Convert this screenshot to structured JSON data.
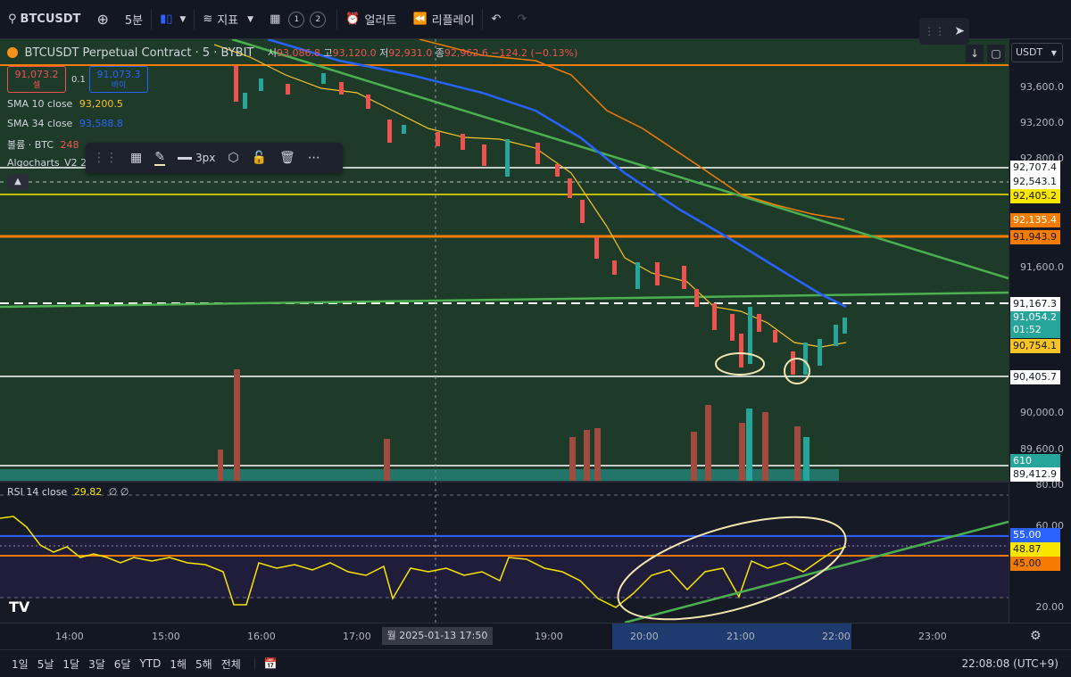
{
  "toolbar": {
    "symbol": "BTCUSDT",
    "interval": "5분",
    "indicators": "지표",
    "layout_1": "1",
    "layout_2": "2",
    "alert": "얼러트",
    "replay": "리플레이"
  },
  "legend": {
    "title": "BTCUSDT Perpetual Contract · 5 · BYBIT",
    "open_label": "시",
    "open": "93,086.8",
    "high_label": "고",
    "high": "93,120.0",
    "low_label": "저",
    "low": "92,931.0",
    "close_label": "종",
    "close": "92,962.6",
    "change": "−124.2 (−0.13%)",
    "sell_price": "91,073.2",
    "sell_label": "셀",
    "spread": "0.1",
    "buy_price": "91,073.3",
    "buy_label": "바이",
    "sma10_label": "SMA 10 close",
    "sma10_value": "93,200.5",
    "sma34_label": "SMA 34 close",
    "sma34_value": "93,588.8",
    "volume_label": "볼륨 · BTC",
    "volume_value": "248",
    "algo_label": "Algocharts_V2 2"
  },
  "drawing_toolbar": {
    "width_label": "3px"
  },
  "currency": "USDT",
  "price_axis": {
    "ticks": [
      "93,600.0",
      "93,200.0",
      "92,800.0",
      "91,600.0",
      "90,000.0",
      "89,600.0"
    ],
    "labels": {
      "l1": "92,707.4",
      "l2": "92,543.1",
      "l3": "92,405.2",
      "l4": "92,135.4",
      "l5": "91,943.9",
      "l6": "91,167.3",
      "l7": "91,054.2",
      "l7b": "01:52",
      "l8": "90,754.1",
      "l9": "90,405.7",
      "l10": "610",
      "l11": "89,412.9"
    }
  },
  "rsi": {
    "label": "RSI 14 close",
    "value": "29.82",
    "extra": "∅ ∅",
    "ticks": [
      "80.00",
      "60.00",
      "20.00"
    ],
    "labels": {
      "a": "55.00",
      "b": "48.87",
      "c": "45.00"
    }
  },
  "time_axis": {
    "ticks": [
      "14:00",
      "15:00",
      "16:00",
      "17:00",
      "19:00",
      "20:00",
      "21:00",
      "22:00",
      "23:00"
    ],
    "cursor_label": "월 2025-01-13   17:50"
  },
  "bottom": {
    "ranges": [
      "1일",
      "5날",
      "1달",
      "3달",
      "6달",
      "YTD",
      "1해",
      "5해",
      "전체"
    ],
    "clock": "22:08:08 (UTC+9)"
  },
  "colors": {
    "up": "#26a69a",
    "down": "#ef5350",
    "sma10": "#f7c325",
    "sma34": "#2962ff",
    "orange": "#f57c00",
    "green_line": "#4caf50",
    "rsi": "#f7e600"
  }
}
